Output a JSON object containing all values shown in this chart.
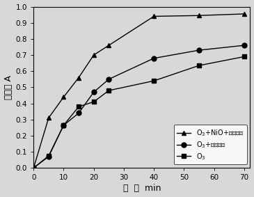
{
  "series1_label": "O$_3$+NiO+陶瓷滤球",
  "series2_label": "O$_3$+陶瓷滤球",
  "series3_label": "O$_3$",
  "series1_x": [
    0,
    5,
    10,
    15,
    20,
    25,
    40,
    55,
    70
  ],
  "series1_y": [
    0.0,
    0.31,
    0.44,
    0.56,
    0.7,
    0.76,
    0.94,
    0.945,
    0.955
  ],
  "series2_x": [
    0,
    5,
    10,
    15,
    20,
    25,
    40,
    55,
    70
  ],
  "series2_y": [
    0.0,
    0.07,
    0.265,
    0.34,
    0.47,
    0.55,
    0.68,
    0.73,
    0.76
  ],
  "series3_x": [
    0,
    5,
    10,
    15,
    20,
    25,
    40,
    55,
    70
  ],
  "series3_y": [
    0.0,
    0.075,
    0.265,
    0.38,
    0.41,
    0.48,
    0.54,
    0.635,
    0.69
  ],
  "xlabel": "时  间  min",
  "ylabel": "吸光度 A",
  "xlim": [
    0,
    72
  ],
  "ylim": [
    0.0,
    1.0
  ],
  "xticks": [
    0,
    10,
    20,
    30,
    40,
    50,
    60,
    70
  ],
  "yticks": [
    0.0,
    0.1,
    0.2,
    0.3,
    0.4,
    0.5,
    0.6,
    0.7,
    0.8,
    0.9,
    1.0
  ],
  "ytick_labels": [
    "0.0",
    "0.1",
    "0.2",
    "0.3",
    "0.4",
    "0.5",
    "0.6",
    "0.7",
    "0.8",
    "0.9",
    "1.0"
  ],
  "line_color": "#000000",
  "bg_color": "#d8d8d8",
  "marker1": "^",
  "marker2": "o",
  "marker3": "s",
  "markersize": 5,
  "linewidth": 1.0,
  "legend_loc": "lower right",
  "legend_fontsize": 7,
  "axis_label_fontsize": 9,
  "tick_fontsize": 7.5
}
